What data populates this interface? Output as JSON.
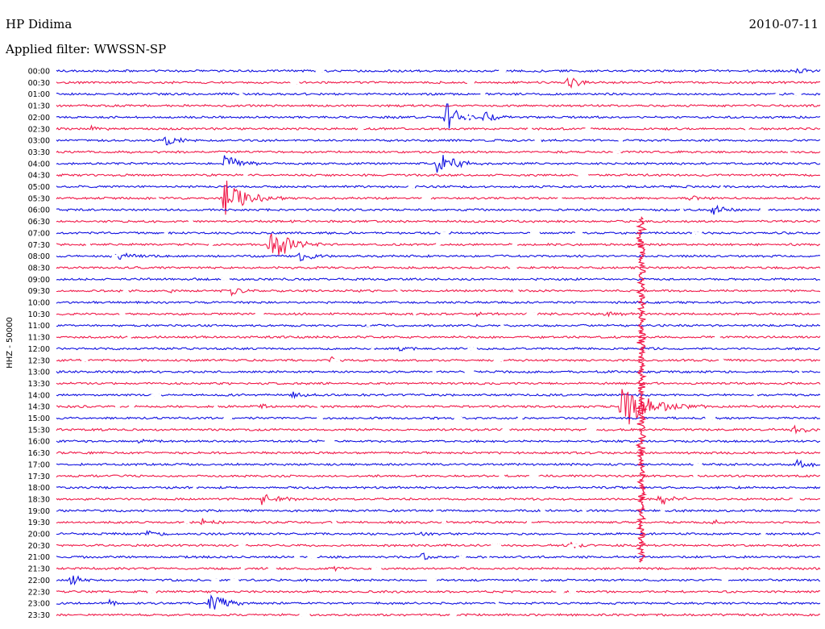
{
  "chart_data": {
    "type": "line",
    "station": "HP Didima",
    "date": "2010-07-11",
    "filter_label": "Applied filter: WWSSN-SP",
    "ylabel": "HHZ - 50000",
    "row_labels": [
      "00:00",
      "00:30",
      "01:00",
      "01:30",
      "02:00",
      "02:30",
      "03:00",
      "03:30",
      "04:00",
      "04:30",
      "05:00",
      "05:30",
      "06:00",
      "06:30",
      "07:00",
      "07:30",
      "08:00",
      "08:30",
      "09:00",
      "09:30",
      "10:00",
      "10:30",
      "11:00",
      "11:30",
      "12:00",
      "12:30",
      "13:00",
      "13:30",
      "14:00",
      "14:30",
      "15:00",
      "15:30",
      "16:00",
      "16:30",
      "17:00",
      "17:30",
      "18:00",
      "18:30",
      "19:00",
      "19:30",
      "20:00",
      "20:30",
      "21:00",
      "21:30",
      "22:00",
      "22:30",
      "23:00",
      "23:30"
    ],
    "colors": {
      "even_rows": "#1010e0",
      "odd_rows": "#f01848"
    },
    "events": [
      {
        "row": 0,
        "t": 0.97,
        "amp": 1.2,
        "dur": 0.04
      },
      {
        "row": 1,
        "t": 0.67,
        "amp": 3.0,
        "dur": 0.04
      },
      {
        "row": 4,
        "t": 0.51,
        "amp": 6.0,
        "dur": 0.05
      },
      {
        "row": 4,
        "t": 0.56,
        "amp": 3.0,
        "dur": 0.04
      },
      {
        "row": 5,
        "t": 0.04,
        "amp": 2.0,
        "dur": 0.03
      },
      {
        "row": 6,
        "t": 0.14,
        "amp": 3.0,
        "dur": 0.05
      },
      {
        "row": 8,
        "t": 0.22,
        "amp": 4.0,
        "dur": 0.05
      },
      {
        "row": 8,
        "t": 0.5,
        "amp": 7.0,
        "dur": 0.06
      },
      {
        "row": 11,
        "t": 0.22,
        "amp": 8.0,
        "dur": 0.08
      },
      {
        "row": 11,
        "t": 0.83,
        "amp": 1.5,
        "dur": 0.03
      },
      {
        "row": 12,
        "t": 0.86,
        "amp": 3.0,
        "dur": 0.03
      },
      {
        "row": 15,
        "t": 0.28,
        "amp": 8.0,
        "dur": 0.07
      },
      {
        "row": 16,
        "t": 0.08,
        "amp": 2.0,
        "dur": 0.05
      },
      {
        "row": 16,
        "t": 0.32,
        "amp": 2.0,
        "dur": 0.04
      },
      {
        "row": 19,
        "t": 0.15,
        "amp": 1.0,
        "dur": 0.02
      },
      {
        "row": 19,
        "t": 0.23,
        "amp": 2.5,
        "dur": 0.03
      },
      {
        "row": 21,
        "t": 0.55,
        "amp": 1.0,
        "dur": 0.04
      },
      {
        "row": 21,
        "t": 0.72,
        "amp": 1.0,
        "dur": 0.06
      },
      {
        "row": 24,
        "t": 0.45,
        "amp": 1.0,
        "dur": 0.04
      },
      {
        "row": 25,
        "t": 0.36,
        "amp": 1.5,
        "dur": 0.02
      },
      {
        "row": 28,
        "t": 0.31,
        "amp": 1.0,
        "dur": 0.04
      },
      {
        "row": 29,
        "t": 0.27,
        "amp": 1.5,
        "dur": 0.02
      },
      {
        "row": 29,
        "t": 0.74,
        "amp": 10.0,
        "dur": 0.11
      },
      {
        "row": 31,
        "t": 0.96,
        "amp": 2.5,
        "dur": 0.05
      },
      {
        "row": 32,
        "t": 0.11,
        "amp": 1.0,
        "dur": 0.03
      },
      {
        "row": 34,
        "t": 0.97,
        "amp": 2.5,
        "dur": 0.04
      },
      {
        "row": 37,
        "t": 0.27,
        "amp": 3.0,
        "dur": 0.05
      },
      {
        "row": 37,
        "t": 0.79,
        "amp": 3.0,
        "dur": 0.05
      },
      {
        "row": 39,
        "t": 0.19,
        "amp": 2.0,
        "dur": 0.03
      },
      {
        "row": 39,
        "t": 0.86,
        "amp": 1.0,
        "dur": 0.03
      },
      {
        "row": 40,
        "t": 0.12,
        "amp": 2.0,
        "dur": 0.03
      },
      {
        "row": 40,
        "t": 0.48,
        "amp": 1.5,
        "dur": 0.03
      },
      {
        "row": 41,
        "t": 0.67,
        "amp": 1.5,
        "dur": 0.03
      },
      {
        "row": 42,
        "t": 0.48,
        "amp": 2.5,
        "dur": 0.02
      },
      {
        "row": 43,
        "t": 0.36,
        "amp": 1.5,
        "dur": 0.03
      },
      {
        "row": 44,
        "t": 0.02,
        "amp": 3.0,
        "dur": 0.03
      },
      {
        "row": 46,
        "t": 0.2,
        "amp": 5.0,
        "dur": 0.06
      },
      {
        "row": 46,
        "t": 0.07,
        "amp": 1.5,
        "dur": 0.02
      }
    ]
  }
}
